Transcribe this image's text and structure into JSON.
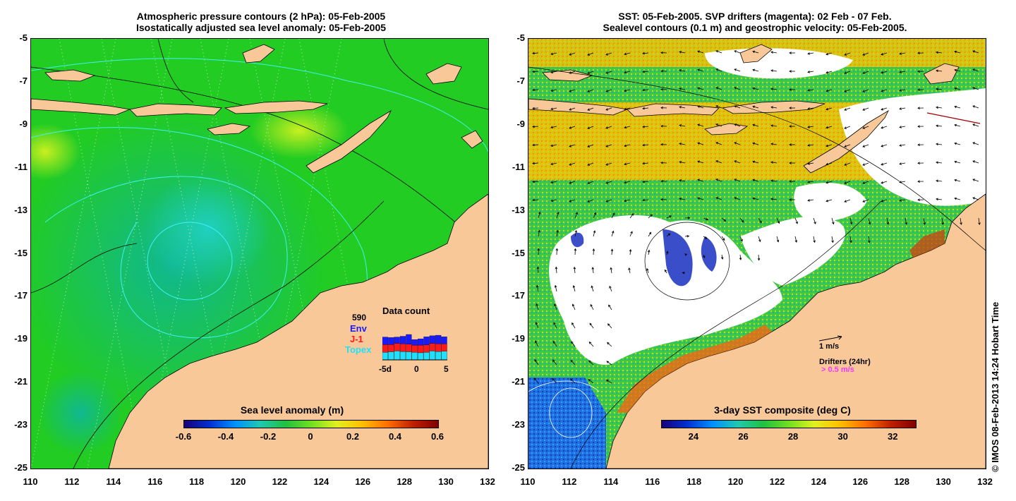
{
  "left_panel": {
    "title_line1": "Atmospheric pressure contours (2 hPa): 05-Feb-2005",
    "title_line2": "Isostatically adjusted sea level anomaly: 05-Feb-2005",
    "y_ticks": [
      "-5",
      "-7",
      "-9",
      "-11",
      "-13",
      "-15",
      "-17",
      "-19",
      "-21",
      "-23",
      "-25"
    ],
    "x_ticks": [
      "110",
      "112",
      "114",
      "116",
      "118",
      "120",
      "122",
      "124",
      "126",
      "128",
      "130",
      "132"
    ],
    "colorbar": {
      "title": "Sea level anomaly (m)",
      "labels": [
        "-0.6",
        "-0.4",
        "-0.2",
        "0",
        "0.2",
        "0.4",
        "0.6"
      ],
      "range": [
        -0.6,
        0.6
      ]
    },
    "data_count": {
      "title": "Data count",
      "max_label": "590",
      "legend": [
        {
          "name": "Env",
          "color": "#1a1aff"
        },
        {
          "name": "J-1",
          "color": "#ff1a1a"
        },
        {
          "name": "Topex",
          "color": "#20e0ff"
        }
      ],
      "x_labels": [
        "-5d",
        "0",
        "5"
      ],
      "bars": {
        "topex": [
          0.3,
          0.32,
          0.35,
          0.33,
          0.32,
          0.3,
          0.28,
          0.3,
          0.35,
          0.33,
          0.34
        ],
        "j1": [
          0.3,
          0.28,
          0.3,
          0.3,
          0.3,
          0.28,
          0.3,
          0.29,
          0.3,
          0.3,
          0.29
        ],
        "env": [
          0.3,
          0.28,
          0.25,
          0.3,
          0.38,
          0.22,
          0.25,
          0.32,
          0.3,
          0.34,
          0.28
        ]
      }
    }
  },
  "right_panel": {
    "title_line1": "SST: 05-Feb-2005. SVP drifters (magenta): 02 Feb - 07 Feb.",
    "title_line2": "Sealevel contours (0.1 m) and geostrophic velocity: 05-Feb-2005.",
    "y_ticks": [
      "-5",
      "-7",
      "-9",
      "-11",
      "-13",
      "-15",
      "-17",
      "-19",
      "-21",
      "-23",
      "-25"
    ],
    "x_ticks": [
      "110",
      "112",
      "114",
      "116",
      "118",
      "120",
      "122",
      "124",
      "126",
      "128",
      "130",
      "132"
    ],
    "colorbar": {
      "title": "3-day SST composite (deg C)",
      "labels": [
        "24",
        "26",
        "28",
        "30",
        "32"
      ],
      "range": [
        22.7,
        32.9
      ]
    },
    "velocity_legend": "1 m/s",
    "drifter_legend_title": "Drifters (24hr)",
    "drifter_legend_value": "> 0.5 m/s",
    "drifter_color": "#ff33ff"
  },
  "credit": "© IMOS 08-Feb-2013 14:24 Hobart Time",
  "colors": {
    "land": "#f8c898",
    "missing": "#ffffff"
  }
}
